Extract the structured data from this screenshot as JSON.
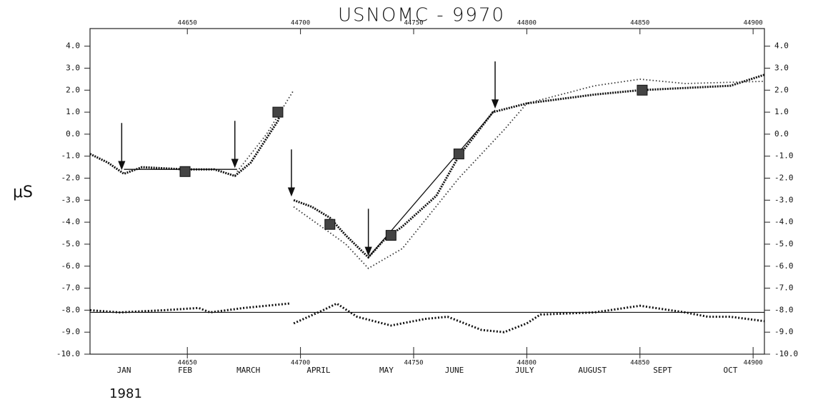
{
  "chart_data": {
    "type": "line",
    "title": "USNOMC - 9970",
    "y_label": "μS",
    "year_label": "1981",
    "xlim": [
      44607,
      44905
    ],
    "xticks": [
      44650,
      44700,
      44750,
      44800,
      44850,
      44900
    ],
    "ylim": [
      -10,
      4.8
    ],
    "yticks": [
      {
        "value": 4,
        "label": "4.0"
      },
      {
        "value": 3,
        "label": "3.0"
      },
      {
        "value": 2,
        "label": "2.0"
      },
      {
        "value": 1,
        "label": "1.0"
      },
      {
        "value": 0,
        "label": "0.0"
      },
      {
        "value": -1,
        "label": "-1.0"
      },
      {
        "value": -2,
        "label": "-2.0"
      },
      {
        "value": -3,
        "label": "-3.0"
      },
      {
        "value": -4,
        "label": "-4.0"
      },
      {
        "value": -5,
        "label": "-5.0"
      },
      {
        "value": -6,
        "label": "-6.0"
      },
      {
        "value": -7,
        "label": "-7.0"
      },
      {
        "value": -8,
        "label": "-8.0"
      },
      {
        "value": -9,
        "label": "-9.0"
      },
      {
        "value": -10,
        "label": "-10.0"
      }
    ],
    "months": [
      {
        "label": "JAN",
        "x": 44622
      },
      {
        "label": "FEB",
        "x": 44649
      },
      {
        "label": "MARCH",
        "x": 44677
      },
      {
        "label": "APRIL",
        "x": 44708
      },
      {
        "label": "MAY",
        "x": 44738
      },
      {
        "label": "JUNE",
        "x": 44768
      },
      {
        "label": "JULY",
        "x": 44799
      },
      {
        "label": "AUGUST",
        "x": 44829
      },
      {
        "label": "SEPT",
        "x": 44860
      },
      {
        "label": "OCT",
        "x": 44890
      }
    ],
    "series": [
      {
        "color": "#111",
        "style": "main",
        "x": [
          44607,
          44615,
          44622,
          44630,
          44649,
          44662,
          44671,
          44678,
          44690,
          44692,
          null,
          44697,
          44705,
          44713,
          44720,
          44730,
          44737,
          44745,
          44760,
          44770,
          44785,
          44800,
          44830,
          44850,
          44870,
          44890,
          44905
        ],
        "values": [
          -0.9,
          -1.3,
          -1.8,
          -1.5,
          -1.6,
          -1.6,
          -1.9,
          -1.3,
          0.6,
          1.2,
          null,
          -3.0,
          -3.3,
          -3.8,
          -4.6,
          -5.6,
          -4.8,
          -4.2,
          -2.8,
          -1.0,
          1.0,
          1.4,
          1.8,
          2.0,
          2.1,
          2.2,
          2.7
        ]
      },
      {
        "color": "#333",
        "style": "dotted",
        "x": [
          44672,
          44685,
          44697,
          null,
          44697,
          44720,
          44730,
          44745,
          44770,
          44790,
          44800,
          44830,
          44850,
          44870,
          44905
        ],
        "values": [
          -1.7,
          0.0,
          2.0,
          null,
          -3.3,
          -5.0,
          -6.1,
          -5.2,
          -2.0,
          0.2,
          1.4,
          2.2,
          2.5,
          2.3,
          2.4
        ]
      },
      {
        "color": "#111",
        "style": "fit",
        "x": [
          44622,
          44672,
          null,
          44730,
          44786
        ],
        "values": [
          -1.6,
          -1.6,
          null,
          -5.6,
          1.1
        ]
      },
      {
        "color": "#111",
        "style": "residual",
        "x": [
          44607,
          44620,
          44640,
          44655,
          44660,
          44675,
          44695,
          null,
          44697,
          44710,
          44716,
          44725,
          44740,
          44755,
          44765,
          44780,
          44790,
          44800,
          44806,
          44830,
          44850,
          44870,
          44880,
          44890,
          44905
        ],
        "values": [
          -8.0,
          -8.1,
          -8.0,
          -7.9,
          -8.1,
          -7.9,
          -7.7,
          null,
          -8.6,
          -8.0,
          -7.7,
          -8.3,
          -8.7,
          -8.4,
          -8.3,
          -8.9,
          -9.0,
          -8.6,
          -8.2,
          -8.1,
          -7.8,
          -8.1,
          -8.3,
          -8.3,
          -8.5
        ]
      }
    ],
    "baseline": -8.1,
    "markers": {
      "x": [
        44649,
        44690,
        44713,
        44740,
        44770,
        44851
      ],
      "values": [
        -1.7,
        1.0,
        -4.1,
        -4.6,
        -0.9,
        2.0
      ]
    },
    "arrows": {
      "x": [
        44621,
        44671,
        44696,
        44730,
        44786
      ],
      "values": [
        -1.7,
        -1.6,
        -2.9,
        -5.6,
        1.1
      ]
    }
  }
}
